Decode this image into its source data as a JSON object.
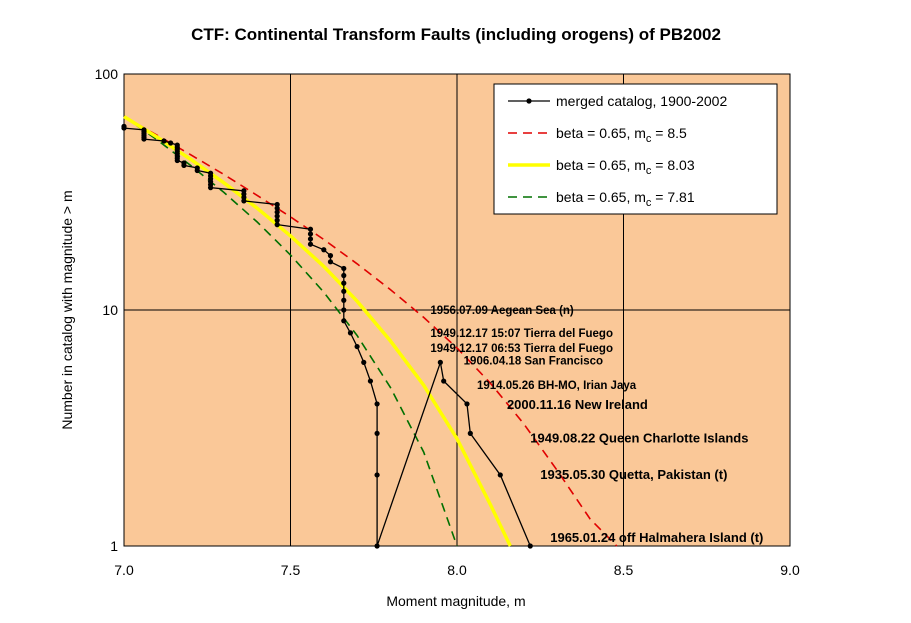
{
  "chart_data": {
    "type": "line",
    "title": "CTF: Continental Transform Faults (including orogens) of PB2002",
    "xlabel": "Moment magnitude, m",
    "ylabel": "Number in catalog with magnitude > m",
    "xlim": [
      7.0,
      9.0
    ],
    "ylim": [
      1,
      100
    ],
    "yscale": "log",
    "grid": true,
    "legend_position": "top-right",
    "xticks": [
      "7.0",
      "7.5",
      "8.0",
      "8.5",
      "9.0"
    ],
    "yticks": [
      "1",
      "10",
      "100"
    ],
    "series": [
      {
        "name": "merged catalog, 1900-2002",
        "style": "step-markers",
        "color": "#000000",
        "x": [
          7.0,
          7.0,
          7.06,
          7.06,
          7.06,
          7.06,
          7.06,
          7.06,
          7.12,
          7.14,
          7.16,
          7.16,
          7.16,
          7.16,
          7.16,
          7.16,
          7.16,
          7.16,
          7.18,
          7.18,
          7.22,
          7.22,
          7.26,
          7.26,
          7.26,
          7.26,
          7.26,
          7.26,
          7.36,
          7.36,
          7.36,
          7.36,
          7.46,
          7.46,
          7.46,
          7.46,
          7.46,
          7.46,
          7.56,
          7.56,
          7.56,
          7.56,
          7.6,
          7.62,
          7.62,
          7.66,
          7.66,
          7.66,
          7.66,
          7.66,
          7.66,
          7.66,
          7.68,
          7.7,
          7.72,
          7.74,
          7.76,
          7.76,
          7.76,
          7.76,
          7.95,
          7.96,
          8.03,
          8.04,
          8.13,
          8.22
        ],
        "y": [
          60,
          59,
          58,
          57,
          56,
          55,
          54,
          53,
          52,
          51,
          50,
          49,
          48,
          47,
          46,
          45,
          44,
          43,
          42,
          41,
          40,
          39,
          38,
          37,
          36,
          35,
          34,
          33,
          32,
          31,
          30,
          29,
          28,
          27,
          26,
          25,
          24,
          23,
          22,
          21,
          20,
          19,
          18,
          17,
          16,
          15,
          14,
          13,
          12,
          11,
          10,
          9,
          8,
          7,
          6,
          5,
          4,
          3,
          2,
          1,
          6,
          5,
          4,
          3,
          2,
          1
        ]
      },
      {
        "name": "beta = 0.65, mc = 8.5",
        "style": "dashed",
        "color": "#e00000",
        "x": [
          7.0,
          7.1,
          7.2,
          7.3,
          7.4,
          7.5,
          7.6,
          7.7,
          7.8,
          7.9,
          8.0,
          8.1,
          8.2,
          8.3,
          8.4,
          8.48
        ],
        "y": [
          66,
          55,
          45.5,
          37.5,
          30.6,
          24.8,
          19.9,
          15.7,
          12.2,
          9.3,
          6.9,
          4.9,
          3.3,
          2.1,
          1.3,
          1.0
        ]
      },
      {
        "name": "beta = 0.65, mc = 8.03",
        "style": "solid",
        "color": "#ffff00",
        "x": [
          7.0,
          7.1,
          7.2,
          7.3,
          7.4,
          7.5,
          7.6,
          7.7,
          7.8,
          7.9,
          8.0,
          8.1,
          8.16
        ],
        "y": [
          66,
          54,
          43.5,
          34.6,
          27.0,
          20.6,
          15.3,
          10.9,
          7.4,
          4.8,
          2.85,
          1.5,
          1.0
        ]
      },
      {
        "name": "beta = 0.65, mc = 7.81",
        "style": "dashed",
        "color": "#007000",
        "x": [
          7.0,
          7.1,
          7.2,
          7.3,
          7.4,
          7.5,
          7.6,
          7.7,
          7.8,
          7.9,
          8.0
        ],
        "y": [
          66,
          52.5,
          41,
          31.5,
          23.6,
          17.1,
          11.9,
          7.8,
          4.7,
          2.5,
          1.0
        ]
      }
    ],
    "annotations": [
      {
        "text": "1956.07.09 Aegean Sea (n)",
        "x": 7.92,
        "y": 10.0
      },
      {
        "text": "1949.12.17 15:07 Tierra del Fuego",
        "x": 7.92,
        "y": 8.0
      },
      {
        "text": "1949.12.17 06:53 Tierra del Fuego",
        "x": 7.92,
        "y": 6.9
      },
      {
        "text": "1906.04.18 San Francisco",
        "x": 8.02,
        "y": 6.1
      },
      {
        "text": "1914.05.26 BH-MO, Irian Jaya",
        "x": 8.06,
        "y": 4.8
      },
      {
        "text": "2000.11.16 New Ireland",
        "x": 8.15,
        "y": 3.95
      },
      {
        "text": "1949.08.22 Queen Charlotte Islands",
        "x": 8.22,
        "y": 2.85
      },
      {
        "text": "1935.05.30 Quetta, Pakistan (t)",
        "x": 8.25,
        "y": 2.0
      },
      {
        "text": "1965.01.24 off Halmahera Island (t)",
        "x": 8.28,
        "y": 1.08
      }
    ]
  },
  "colors": {
    "plot_background": "#fac898",
    "grid": "#000000"
  }
}
